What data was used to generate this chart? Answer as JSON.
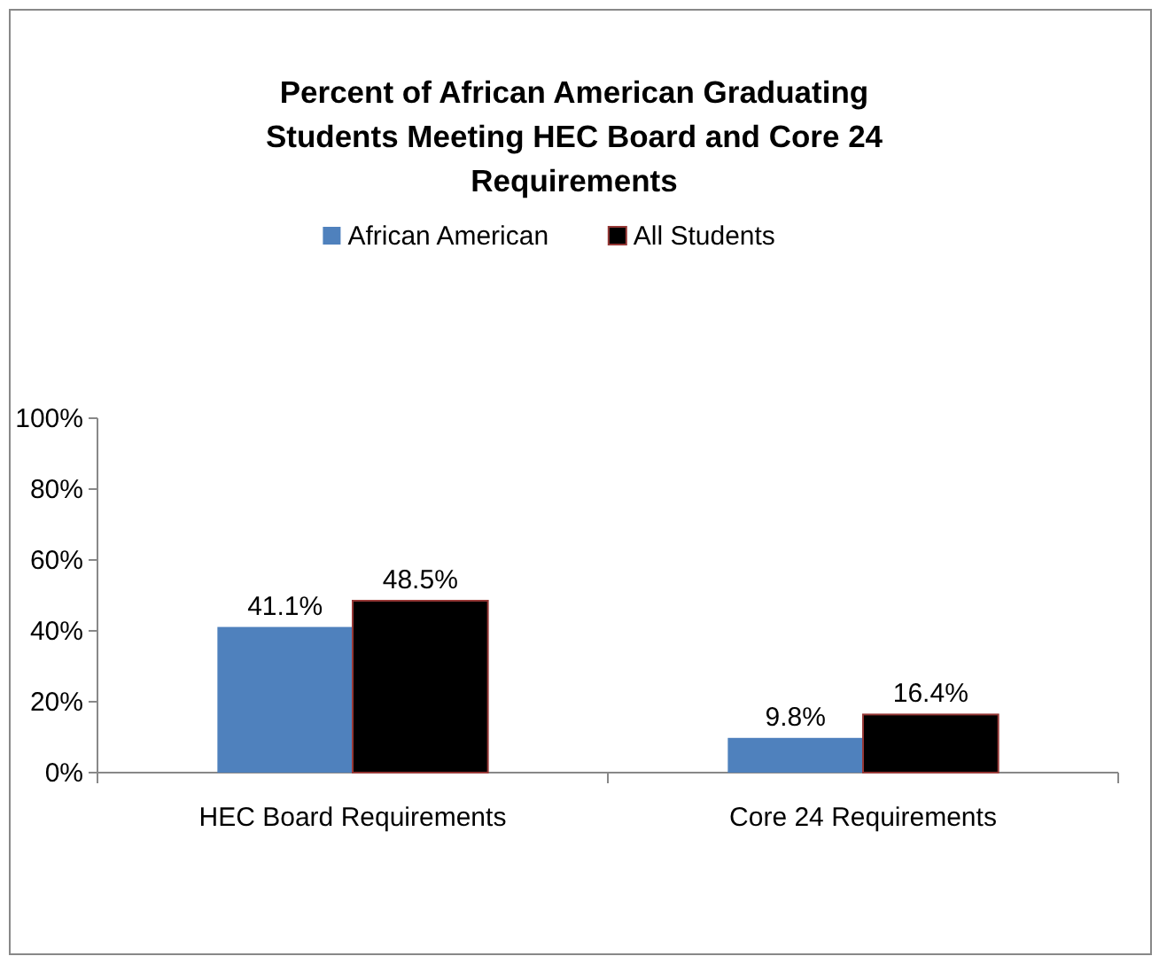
{
  "chart_data": {
    "type": "bar",
    "title": "Percent of African American Graduating Students Meeting HEC Board and Core 24 Requirements",
    "categories": [
      "HEC Board Requirements",
      "Core 24 Requirements"
    ],
    "series": [
      {
        "name": "African American",
        "color": "#4f81bd",
        "values": [
          41.1,
          9.8
        ]
      },
      {
        "name": "All Students",
        "color": "#000000",
        "values": [
          48.5,
          16.4
        ]
      }
    ],
    "value_labels": [
      [
        "41.1%",
        "9.8%"
      ],
      [
        "48.5%",
        "16.4%"
      ]
    ],
    "ylim": [
      0,
      100
    ],
    "yticks": [
      {
        "value": 0,
        "label": "0%"
      },
      {
        "value": 20,
        "label": "20%"
      },
      {
        "value": 40,
        "label": "40%"
      },
      {
        "value": 60,
        "label": "60%"
      },
      {
        "value": 80,
        "label": "80%"
      },
      {
        "value": 100,
        "label": "100%"
      }
    ],
    "legend": "top"
  }
}
